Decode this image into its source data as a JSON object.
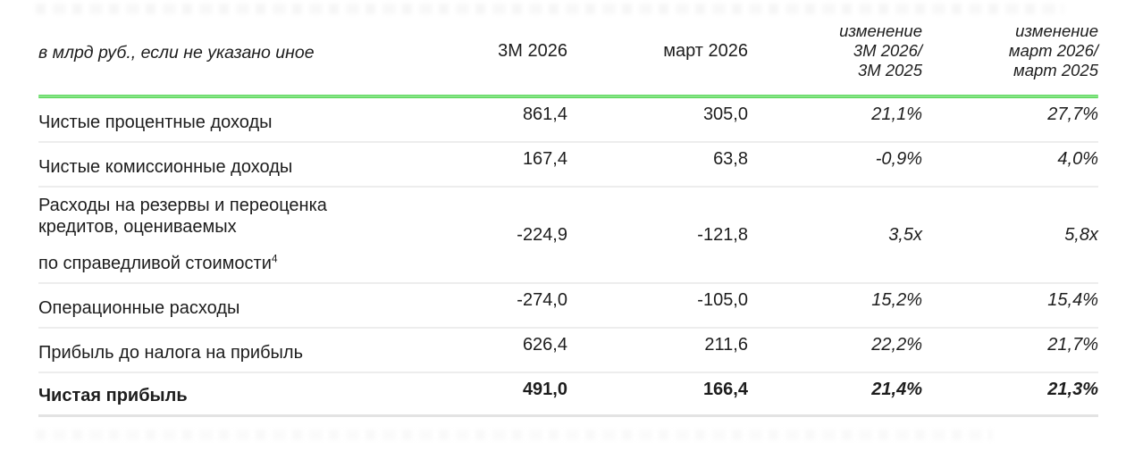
{
  "header": {
    "unit_label": "в млрд руб., если не указано иное",
    "col_period_1": "3М 2026",
    "col_period_2": "март 2026",
    "col_change_1": {
      "l1": "изменение",
      "l2": "3М 2026/",
      "l3": "3М 2025"
    },
    "col_change_2": {
      "l1": "изменение",
      "l2": "март 2026/",
      "l3": "март 2025"
    }
  },
  "rows": [
    {
      "label": "Чистые процентные доходы",
      "v1": "861,4",
      "v2": "305,0",
      "c1": "21,1%",
      "c2": "27,7%"
    },
    {
      "label": "Чистые комиссионные доходы",
      "v1": "167,4",
      "v2": "63,8",
      "c1": "-0,9%",
      "c2": "4,0%"
    },
    {
      "label_part1": "Расходы на резервы и переоценка кредитов, оцениваемых",
      "label_part2": "по справедливой стоимости",
      "footnote": "4",
      "v1": "-224,9",
      "v2": "-121,8",
      "c1": "3,5x",
      "c2": "5,8x"
    },
    {
      "label": "Операционные расходы",
      "v1": "-274,0",
      "v2": "-105,0",
      "c1": "15,2%",
      "c2": "15,4%"
    },
    {
      "label": "Прибыль до налога на прибыль",
      "v1": "626,4",
      "v2": "211,6",
      "c1": "22,2%",
      "c2": "21,7%"
    },
    {
      "label": "Чистая прибыль",
      "v1": "491,0",
      "v2": "166,4",
      "c1": "21,4%",
      "c2": "21,3%"
    }
  ],
  "colors": {
    "accent_green": "#45d145",
    "separator_gray": "#ededed",
    "bottom_rule_gray": "#e3e3e3",
    "text": "#1d1d1d"
  }
}
